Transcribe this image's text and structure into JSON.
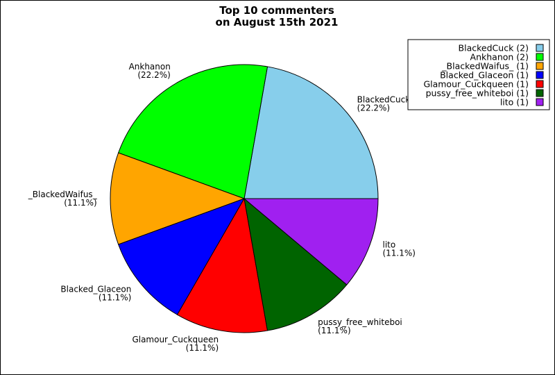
{
  "chart_data": {
    "type": "pie",
    "title": "Top 10 commenters\non August 15th 2021",
    "slices": [
      {
        "label": "BlackedCuck",
        "count": 2,
        "percent": "22.2%",
        "legend": "BlackedCuck (2)",
        "color": "#87CEEB"
      },
      {
        "label": "Ankhanon",
        "count": 2,
        "percent": "22.2%",
        "legend": "Ankhanon (2)",
        "color": "#00FF00"
      },
      {
        "label": "_BlackedWaifus_",
        "count": 1,
        "percent": "11.1%",
        "legend": "_BlackedWaifus_ (1)",
        "color": "#FFA500"
      },
      {
        "label": "Blacked_Glaceon",
        "count": 1,
        "percent": "11.1%",
        "legend": "Blacked_Glaceon (1)",
        "color": "#0000FF"
      },
      {
        "label": "Glamour_Cuckqueen",
        "count": 1,
        "percent": "11.1%",
        "legend": "Glamour_Cuckqueen (1)",
        "color": "#FF0000"
      },
      {
        "label": "pussy_free_whiteboi",
        "count": 1,
        "percent": "11.1%",
        "legend": "pussy_free_whiteboi (1)",
        "color": "#006400"
      },
      {
        "label": "lito",
        "count": 1,
        "percent": "11.1%",
        "legend": "lito (1)",
        "color": "#A020F0"
      }
    ],
    "start_angle_deg": 0,
    "direction": "counterclockwise",
    "legend_position": "top-right"
  }
}
